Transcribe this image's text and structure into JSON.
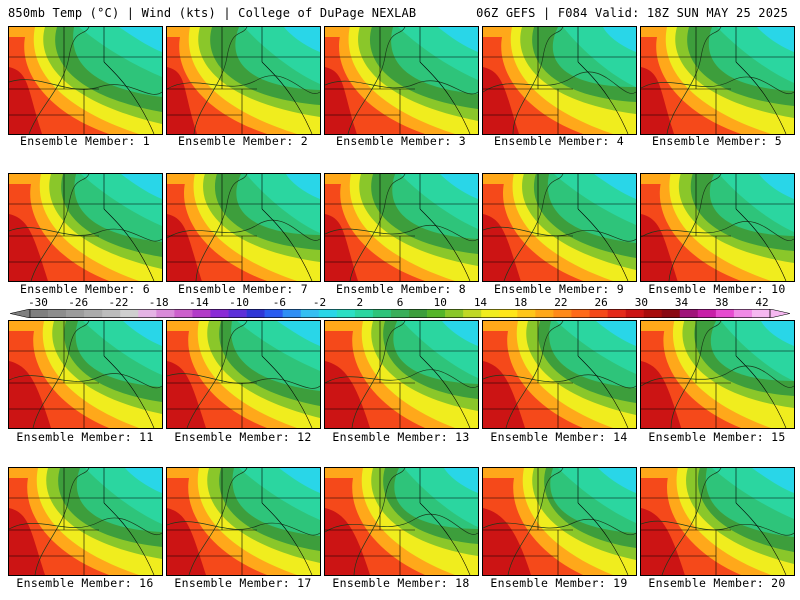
{
  "header": {
    "left": "850mb Temp (°C) | Wind (kts) | College of DuPage NEXLAB",
    "right": "06Z GEFS | F084 Valid: 18Z SUN MAY 25 2025"
  },
  "colorbar": {
    "ticks": [
      "-30",
      "-26",
      "-22",
      "-18",
      "-14",
      "-10",
      "-6",
      "-2",
      "2",
      "6",
      "10",
      "14",
      "18",
      "22",
      "26",
      "30",
      "34",
      "38",
      "42"
    ],
    "colors": [
      "#7f7f7f",
      "#8d8d8d",
      "#9c9c9c",
      "#ababab",
      "#bcbcbc",
      "#cfcfcf",
      "#e5b3e5",
      "#d98ad9",
      "#cc5fcc",
      "#b23bc8",
      "#8a2bd6",
      "#5d2fd9",
      "#2f36d6",
      "#2a5cf0",
      "#2f8ff5",
      "#35bff2",
      "#29d6e8",
      "#2bdfc4",
      "#2bd6a0",
      "#2ec47a",
      "#3aaf5a",
      "#3d9e3c",
      "#55b52a",
      "#8ac72a",
      "#c0d826",
      "#f0ed1e",
      "#ffe61a",
      "#ffc61a",
      "#ffa81a",
      "#ff8a1a",
      "#ff6a1a",
      "#f5491a",
      "#e52a1a",
      "#cc1414",
      "#a80d0d",
      "#8a0a14",
      "#a0147a",
      "#c81ea8",
      "#e64bd0",
      "#f08ae6",
      "#f5b8f0"
    ]
  },
  "panels": [
    {
      "label": "Ensemble Member: 1",
      "warm": 0.3
    },
    {
      "label": "Ensemble Member: 2",
      "warm": 0.25
    },
    {
      "label": "Ensemble Member: 3",
      "warm": 0.28
    },
    {
      "label": "Ensemble Member: 4",
      "warm": 0.35
    },
    {
      "label": "Ensemble Member: 5",
      "warm": 0.3
    },
    {
      "label": "Ensemble Member: 6",
      "warm": 0.4
    },
    {
      "label": "Ensemble Member: 7",
      "warm": 0.33
    },
    {
      "label": "Ensemble Member: 8",
      "warm": 0.3
    },
    {
      "label": "Ensemble Member: 9",
      "warm": 0.38
    },
    {
      "label": "Ensemble Member: 10",
      "warm": 0.36
    },
    {
      "label": "Ensemble Member: 11",
      "warm": 0.45
    },
    {
      "label": "Ensemble Member: 12",
      "warm": 0.4
    },
    {
      "label": "Ensemble Member: 13",
      "warm": 0.5
    },
    {
      "label": "Ensemble Member: 14",
      "warm": 0.45
    },
    {
      "label": "Ensemble Member: 15",
      "warm": 0.42
    },
    {
      "label": "Ensemble Member: 16",
      "warm": 0.35
    },
    {
      "label": "Ensemble Member: 17",
      "warm": 0.4
    },
    {
      "label": "Ensemble Member: 18",
      "warm": 0.5
    },
    {
      "label": "Ensemble Member: 19",
      "warm": 0.55
    },
    {
      "label": "Ensemble Member: 20",
      "warm": 0.48
    }
  ]
}
